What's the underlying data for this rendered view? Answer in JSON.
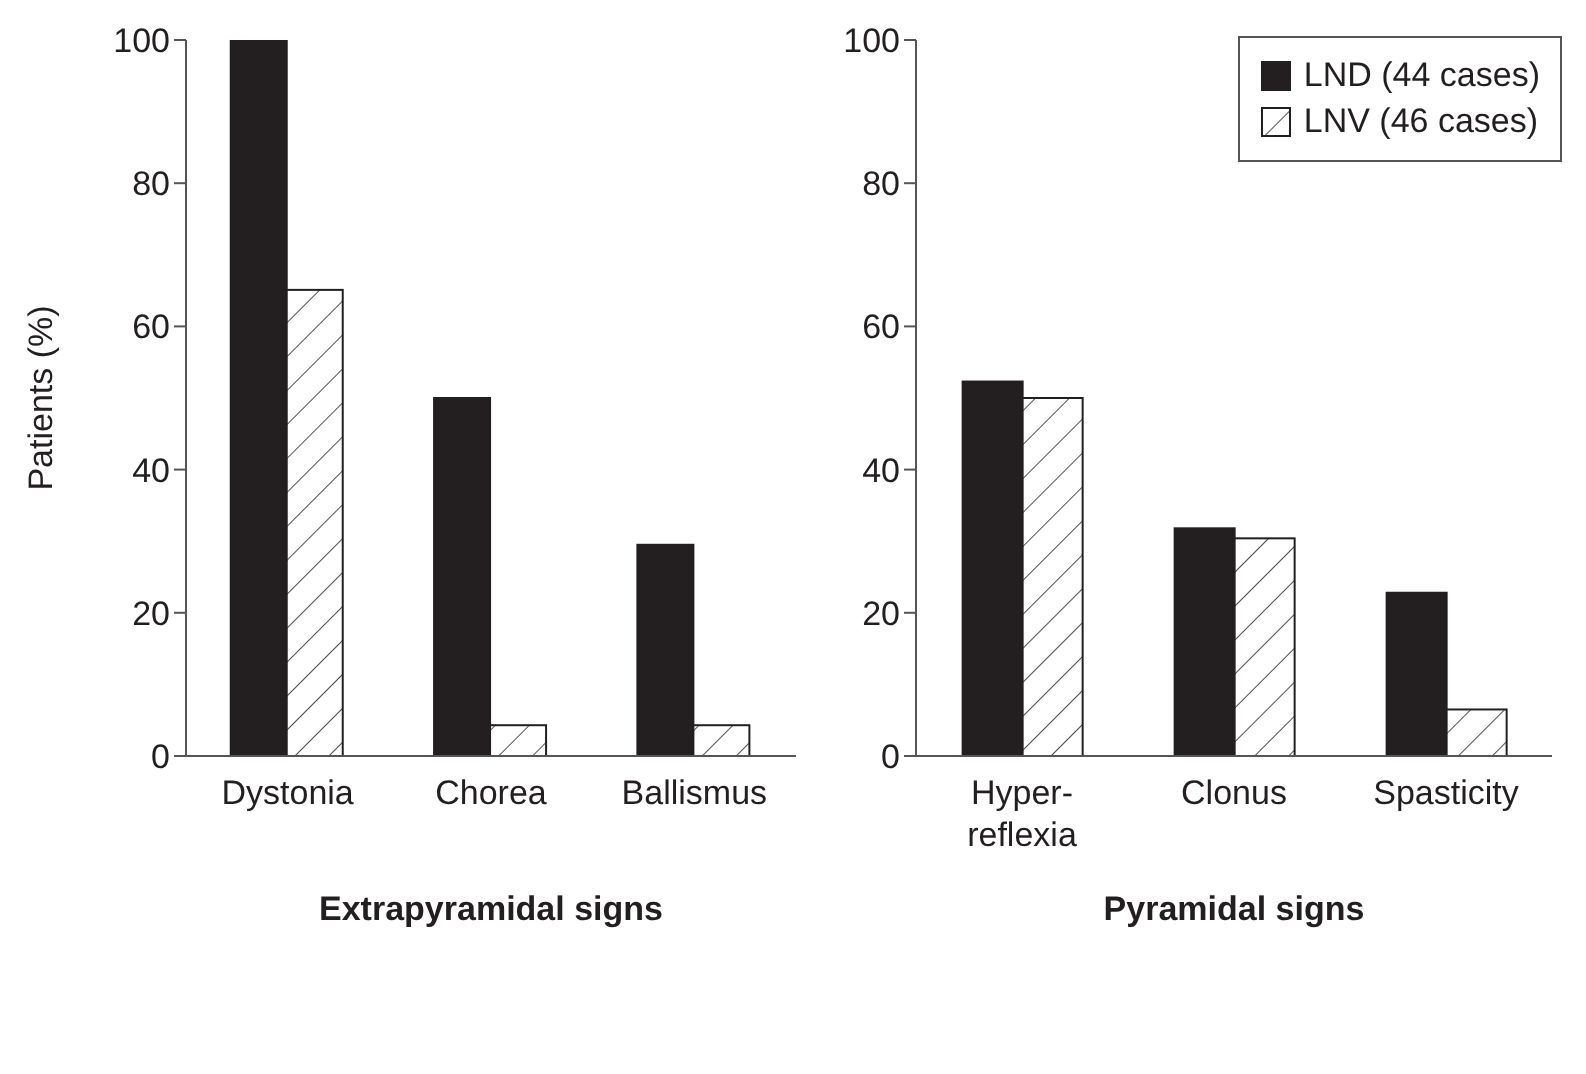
{
  "chart_data": [
    {
      "type": "bar",
      "xlabel": "Extrapyramidal signs",
      "ylabel": "Patients (%)",
      "categories": [
        "Dystonia",
        "Chorea",
        "Ballismus"
      ],
      "series": [
        {
          "color": "#231f20",
          "values": [
            100,
            50,
            29.5
          ]
        },
        {
          "color": "#ffffff",
          "values": [
            65.1,
            4.3,
            4.3
          ]
        }
      ],
      "ylim": [
        0,
        100
      ],
      "yticks": [
        0,
        20,
        40,
        60,
        80,
        100
      ],
      "grid": false,
      "legend": false
    },
    {
      "type": "bar",
      "xlabel": "Pyramidal signs",
      "categories": [
        "Hyper-reflexia",
        "Clonus",
        "Spasticity"
      ],
      "series": [
        {
          "name": "LND (44 cases)",
          "color": "#231f20",
          "values": [
            52.3,
            31.8,
            22.8
          ]
        },
        {
          "name": "LNV (46 cases)",
          "color": "#ffffff",
          "values": [
            50,
            30.4,
            6.5
          ]
        }
      ],
      "ylim": [
        0,
        100
      ],
      "yticks": [
        0,
        20,
        40,
        60,
        80,
        100
      ],
      "grid": false,
      "legend": "top right"
    }
  ]
}
